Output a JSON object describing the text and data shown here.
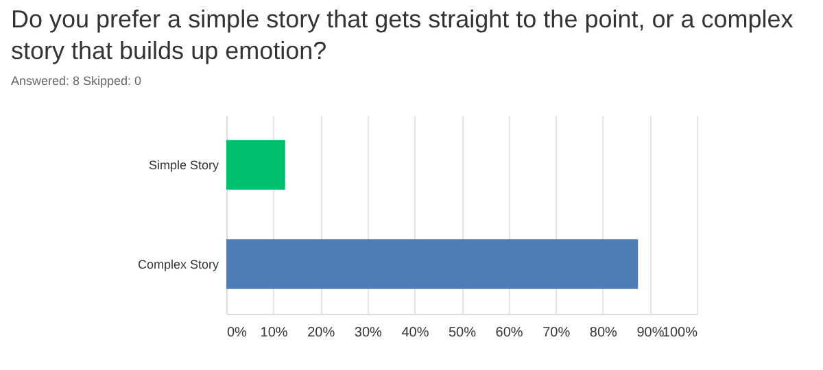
{
  "chart_data": {
    "type": "bar",
    "orientation": "horizontal",
    "title": "Do you prefer a simple story that gets straight to the point, or a complex story that builds up emotion?",
    "subtitle": "Answered: 8    Skipped: 0",
    "categories": [
      "Simple Story",
      "Complex Story"
    ],
    "values": [
      12.5,
      87.5
    ],
    "colors": [
      "#00bf6f",
      "#507cb6"
    ],
    "xlim": [
      0,
      100
    ],
    "xticks": [
      {
        "value": 0,
        "label": "0%"
      },
      {
        "value": 10,
        "label": "10%"
      },
      {
        "value": 20,
        "label": "20%"
      },
      {
        "value": 30,
        "label": "30%"
      },
      {
        "value": 40,
        "label": "40%"
      },
      {
        "value": 50,
        "label": "50%"
      },
      {
        "value": 60,
        "label": "60%"
      },
      {
        "value": 70,
        "label": "70%"
      },
      {
        "value": 80,
        "label": "80%"
      },
      {
        "value": 90,
        "label": "90%"
      },
      {
        "value": 100,
        "label": "100%"
      }
    ],
    "grid": "x"
  }
}
